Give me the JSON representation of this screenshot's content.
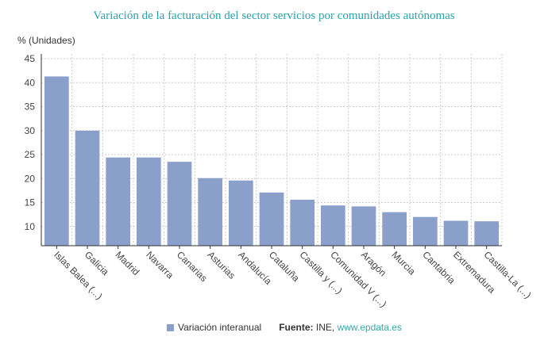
{
  "chart_data": {
    "type": "bar",
    "title": "Variación de la facturación del sector servicios por comunidades autónomas",
    "ylabel": "% (Unidades)",
    "xlabel": "",
    "categories": [
      "Islas Balea (...)",
      "Galicia",
      "Madrid",
      "Navarra",
      "Canarias",
      "Asturias",
      "Andalucía",
      "Cataluña",
      "Castilla y (...)",
      "Comunidad V (...)",
      "Aragón",
      "Murcia",
      "Cantabria",
      "Extremadura",
      "Castilla-La (...)"
    ],
    "series": [
      {
        "name": "Variación interanual",
        "values": [
          41.3,
          30.0,
          24.4,
          24.4,
          23.5,
          20.1,
          19.6,
          17.1,
          15.6,
          14.4,
          14.2,
          13.0,
          12.0,
          11.2,
          11.1
        ]
      }
    ],
    "ylim": [
      6,
      46
    ],
    "yticks": [
      10,
      15,
      20,
      25,
      30,
      35,
      40,
      45
    ],
    "grid": true,
    "legend_position": "bottom",
    "bar_color": "#8b9fcb"
  },
  "source": {
    "label": "Fuente:",
    "text": "INE,",
    "link": "www.epdata.es"
  }
}
